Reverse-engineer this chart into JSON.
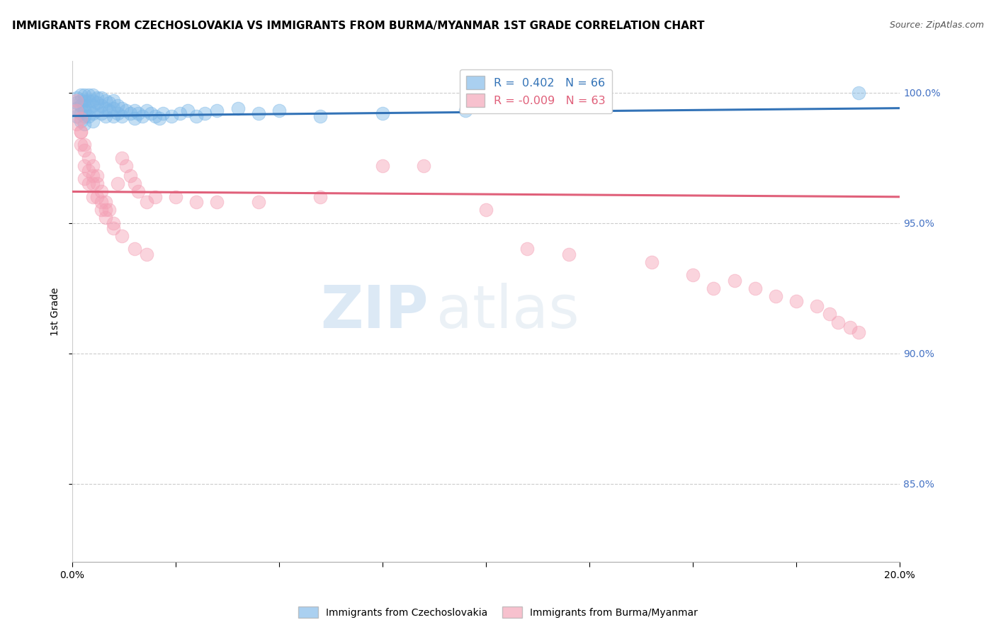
{
  "title": "IMMIGRANTS FROM CZECHOSLOVAKIA VS IMMIGRANTS FROM BURMA/MYANMAR 1ST GRADE CORRELATION CHART",
  "source": "Source: ZipAtlas.com",
  "ylabel": "1st Grade",
  "legend_blue_r": "R =  0.402",
  "legend_blue_n": "N = 66",
  "legend_pink_r": "R = -0.009",
  "legend_pink_n": "N = 63",
  "legend_blue_label": "Immigrants from Czechoslovakia",
  "legend_pink_label": "Immigrants from Burma/Myanmar",
  "blue_color": "#7db8e8",
  "pink_color": "#f4a0b5",
  "blue_line_color": "#3373b7",
  "pink_line_color": "#e0607a",
  "blue_scatter_x": [
    0.001,
    0.001,
    0.001,
    0.001,
    0.002,
    0.002,
    0.002,
    0.002,
    0.002,
    0.003,
    0.003,
    0.003,
    0.003,
    0.003,
    0.003,
    0.004,
    0.004,
    0.004,
    0.004,
    0.005,
    0.005,
    0.005,
    0.005,
    0.005,
    0.006,
    0.006,
    0.006,
    0.007,
    0.007,
    0.007,
    0.008,
    0.008,
    0.008,
    0.009,
    0.009,
    0.01,
    0.01,
    0.01,
    0.011,
    0.011,
    0.012,
    0.012,
    0.013,
    0.014,
    0.015,
    0.015,
    0.016,
    0.017,
    0.018,
    0.019,
    0.02,
    0.021,
    0.022,
    0.024,
    0.026,
    0.028,
    0.03,
    0.032,
    0.035,
    0.04,
    0.045,
    0.05,
    0.06,
    0.075,
    0.095,
    0.19
  ],
  "blue_scatter_y": [
    0.998,
    0.996,
    0.994,
    0.991,
    0.999,
    0.997,
    0.995,
    0.992,
    0.989,
    0.999,
    0.997,
    0.995,
    0.993,
    0.991,
    0.988,
    0.999,
    0.997,
    0.994,
    0.991,
    0.999,
    0.997,
    0.995,
    0.992,
    0.989,
    0.998,
    0.996,
    0.993,
    0.998,
    0.995,
    0.992,
    0.997,
    0.994,
    0.991,
    0.996,
    0.993,
    0.997,
    0.994,
    0.991,
    0.995,
    0.992,
    0.994,
    0.991,
    0.993,
    0.992,
    0.993,
    0.99,
    0.992,
    0.991,
    0.993,
    0.992,
    0.991,
    0.99,
    0.992,
    0.991,
    0.992,
    0.993,
    0.991,
    0.992,
    0.993,
    0.994,
    0.992,
    0.993,
    0.991,
    0.992,
    0.993,
    1.0
  ],
  "pink_scatter_x": [
    0.001,
    0.001,
    0.001,
    0.002,
    0.002,
    0.002,
    0.003,
    0.003,
    0.003,
    0.004,
    0.004,
    0.005,
    0.005,
    0.005,
    0.006,
    0.006,
    0.007,
    0.007,
    0.008,
    0.008,
    0.009,
    0.01,
    0.011,
    0.012,
    0.013,
    0.014,
    0.015,
    0.016,
    0.018,
    0.02,
    0.025,
    0.03,
    0.035,
    0.045,
    0.06,
    0.075,
    0.085,
    0.1,
    0.11,
    0.12,
    0.14,
    0.15,
    0.155,
    0.16,
    0.165,
    0.17,
    0.175,
    0.18,
    0.183,
    0.185,
    0.188,
    0.19,
    0.002,
    0.003,
    0.004,
    0.005,
    0.006,
    0.007,
    0.008,
    0.01,
    0.012,
    0.015,
    0.018
  ],
  "pink_scatter_y": [
    0.997,
    0.993,
    0.988,
    0.99,
    0.985,
    0.98,
    0.978,
    0.972,
    0.967,
    0.97,
    0.965,
    0.96,
    0.972,
    0.965,
    0.968,
    0.96,
    0.962,
    0.955,
    0.958,
    0.952,
    0.955,
    0.95,
    0.965,
    0.975,
    0.972,
    0.968,
    0.965,
    0.962,
    0.958,
    0.96,
    0.96,
    0.958,
    0.958,
    0.958,
    0.96,
    0.972,
    0.972,
    0.955,
    0.94,
    0.938,
    0.935,
    0.93,
    0.925,
    0.928,
    0.925,
    0.922,
    0.92,
    0.918,
    0.915,
    0.912,
    0.91,
    0.908,
    0.985,
    0.98,
    0.975,
    0.968,
    0.965,
    0.958,
    0.955,
    0.948,
    0.945,
    0.94,
    0.938
  ],
  "xmin": 0.0,
  "xmax": 0.2,
  "ymin": 0.82,
  "ymax": 1.012,
  "blue_trend_x0": 0.0,
  "blue_trend_x1": 0.2,
  "blue_trend_y0": 0.991,
  "blue_trend_y1": 0.994,
  "pink_trend_y0": 0.962,
  "pink_trend_y1": 0.96,
  "grid_yticks": [
    0.85,
    0.9,
    0.95,
    1.0
  ],
  "grid_color": "#cccccc",
  "watermark_zip": "ZIP",
  "watermark_atlas": "atlas",
  "title_fontsize": 11,
  "source_fontsize": 9
}
